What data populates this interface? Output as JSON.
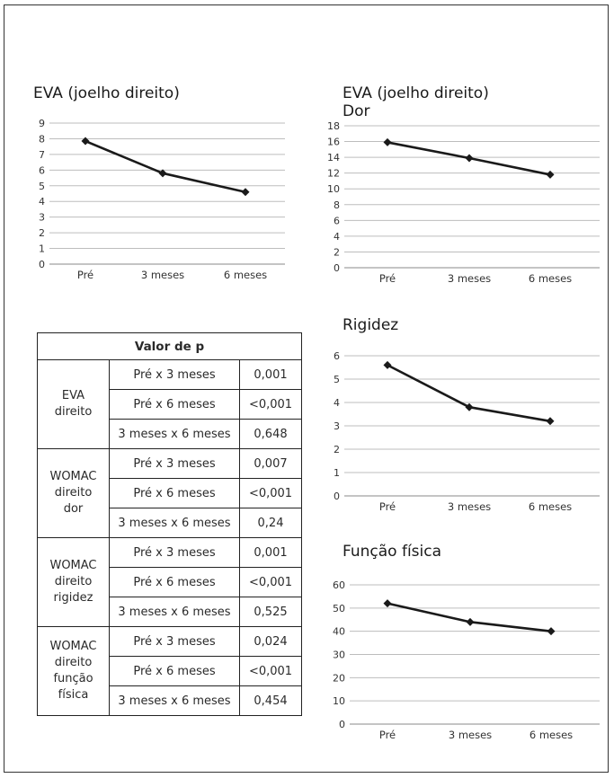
{
  "chart_data": [
    {
      "type": "line",
      "title": "EVA (joelho direito)",
      "categories": [
        "Pré",
        "3 meses",
        "6 meses"
      ],
      "values": [
        7.85,
        5.8,
        4.6
      ],
      "ylim": [
        0,
        9
      ],
      "yticks": [
        "0",
        "1",
        "2",
        "3",
        "4",
        "5",
        "6",
        "7",
        "8",
        "9"
      ],
      "grid": true,
      "line_color": "#1a1a1a"
    },
    {
      "type": "line",
      "title": "EVA (joelho direito)",
      "subtitle": "Dor",
      "categories": [
        "Pré",
        "3 meses",
        "6 meses"
      ],
      "values": [
        15.9,
        13.9,
        11.8
      ],
      "ylim": [
        0,
        18
      ],
      "yticks": [
        "0",
        "2",
        "4",
        "6",
        "8",
        "10",
        "12",
        "14",
        "16",
        "18"
      ],
      "grid": true,
      "line_color": "#1a1a1a"
    },
    {
      "type": "line",
      "title": "Rigidez",
      "categories": [
        "Pré",
        "3 meses",
        "6 meses"
      ],
      "values": [
        5.6,
        3.8,
        3.2
      ],
      "ylim": [
        0,
        6
      ],
      "yticks": [
        "0",
        "1",
        "2",
        "3",
        "4",
        "5",
        "6"
      ],
      "grid": true,
      "line_color": "#1a1a1a"
    },
    {
      "type": "line",
      "title": "Função física",
      "categories": [
        "Pré",
        "3 meses",
        "6 meses"
      ],
      "values": [
        52,
        44,
        40
      ],
      "ylim": [
        0,
        60
      ],
      "yticks": [
        "0",
        "10",
        "20",
        "30",
        "40",
        "50",
        "60"
      ],
      "grid": true,
      "line_color": "#1a1a1a"
    }
  ],
  "table": {
    "header": "Valor de p",
    "groups": [
      {
        "label_lines": [
          "EVA",
          "direito"
        ],
        "rows": [
          {
            "comparison": "Pré x 3 meses",
            "value": "0,001"
          },
          {
            "comparison": "Pré x 6 meses",
            "value": "<0,001"
          },
          {
            "comparison": "3 meses x 6 meses",
            "value": "0,648"
          }
        ]
      },
      {
        "label_lines": [
          "WOMAC",
          "direito",
          "dor"
        ],
        "rows": [
          {
            "comparison": "Pré x 3 meses",
            "value": "0,007"
          },
          {
            "comparison": "Pré x 6 meses",
            "value": "<0,001"
          },
          {
            "comparison": "3 meses x 6 meses",
            "value": "0,24"
          }
        ]
      },
      {
        "label_lines": [
          "WOMAC",
          "direito",
          "rigidez"
        ],
        "rows": [
          {
            "comparison": "Pré x 3 meses",
            "value": "0,001"
          },
          {
            "comparison": "Pré x 6 meses",
            "value": "<0,001"
          },
          {
            "comparison": "3 meses x 6 meses",
            "value": "0,525"
          }
        ]
      },
      {
        "label_lines": [
          "WOMAC",
          "direito",
          "função",
          "física"
        ],
        "rows": [
          {
            "comparison": "Pré x 3 meses",
            "value": "0,024"
          },
          {
            "comparison": "Pré x 6 meses",
            "value": "<0,001"
          },
          {
            "comparison": "3 meses x 6 meses",
            "value": "0,454"
          }
        ]
      }
    ]
  }
}
